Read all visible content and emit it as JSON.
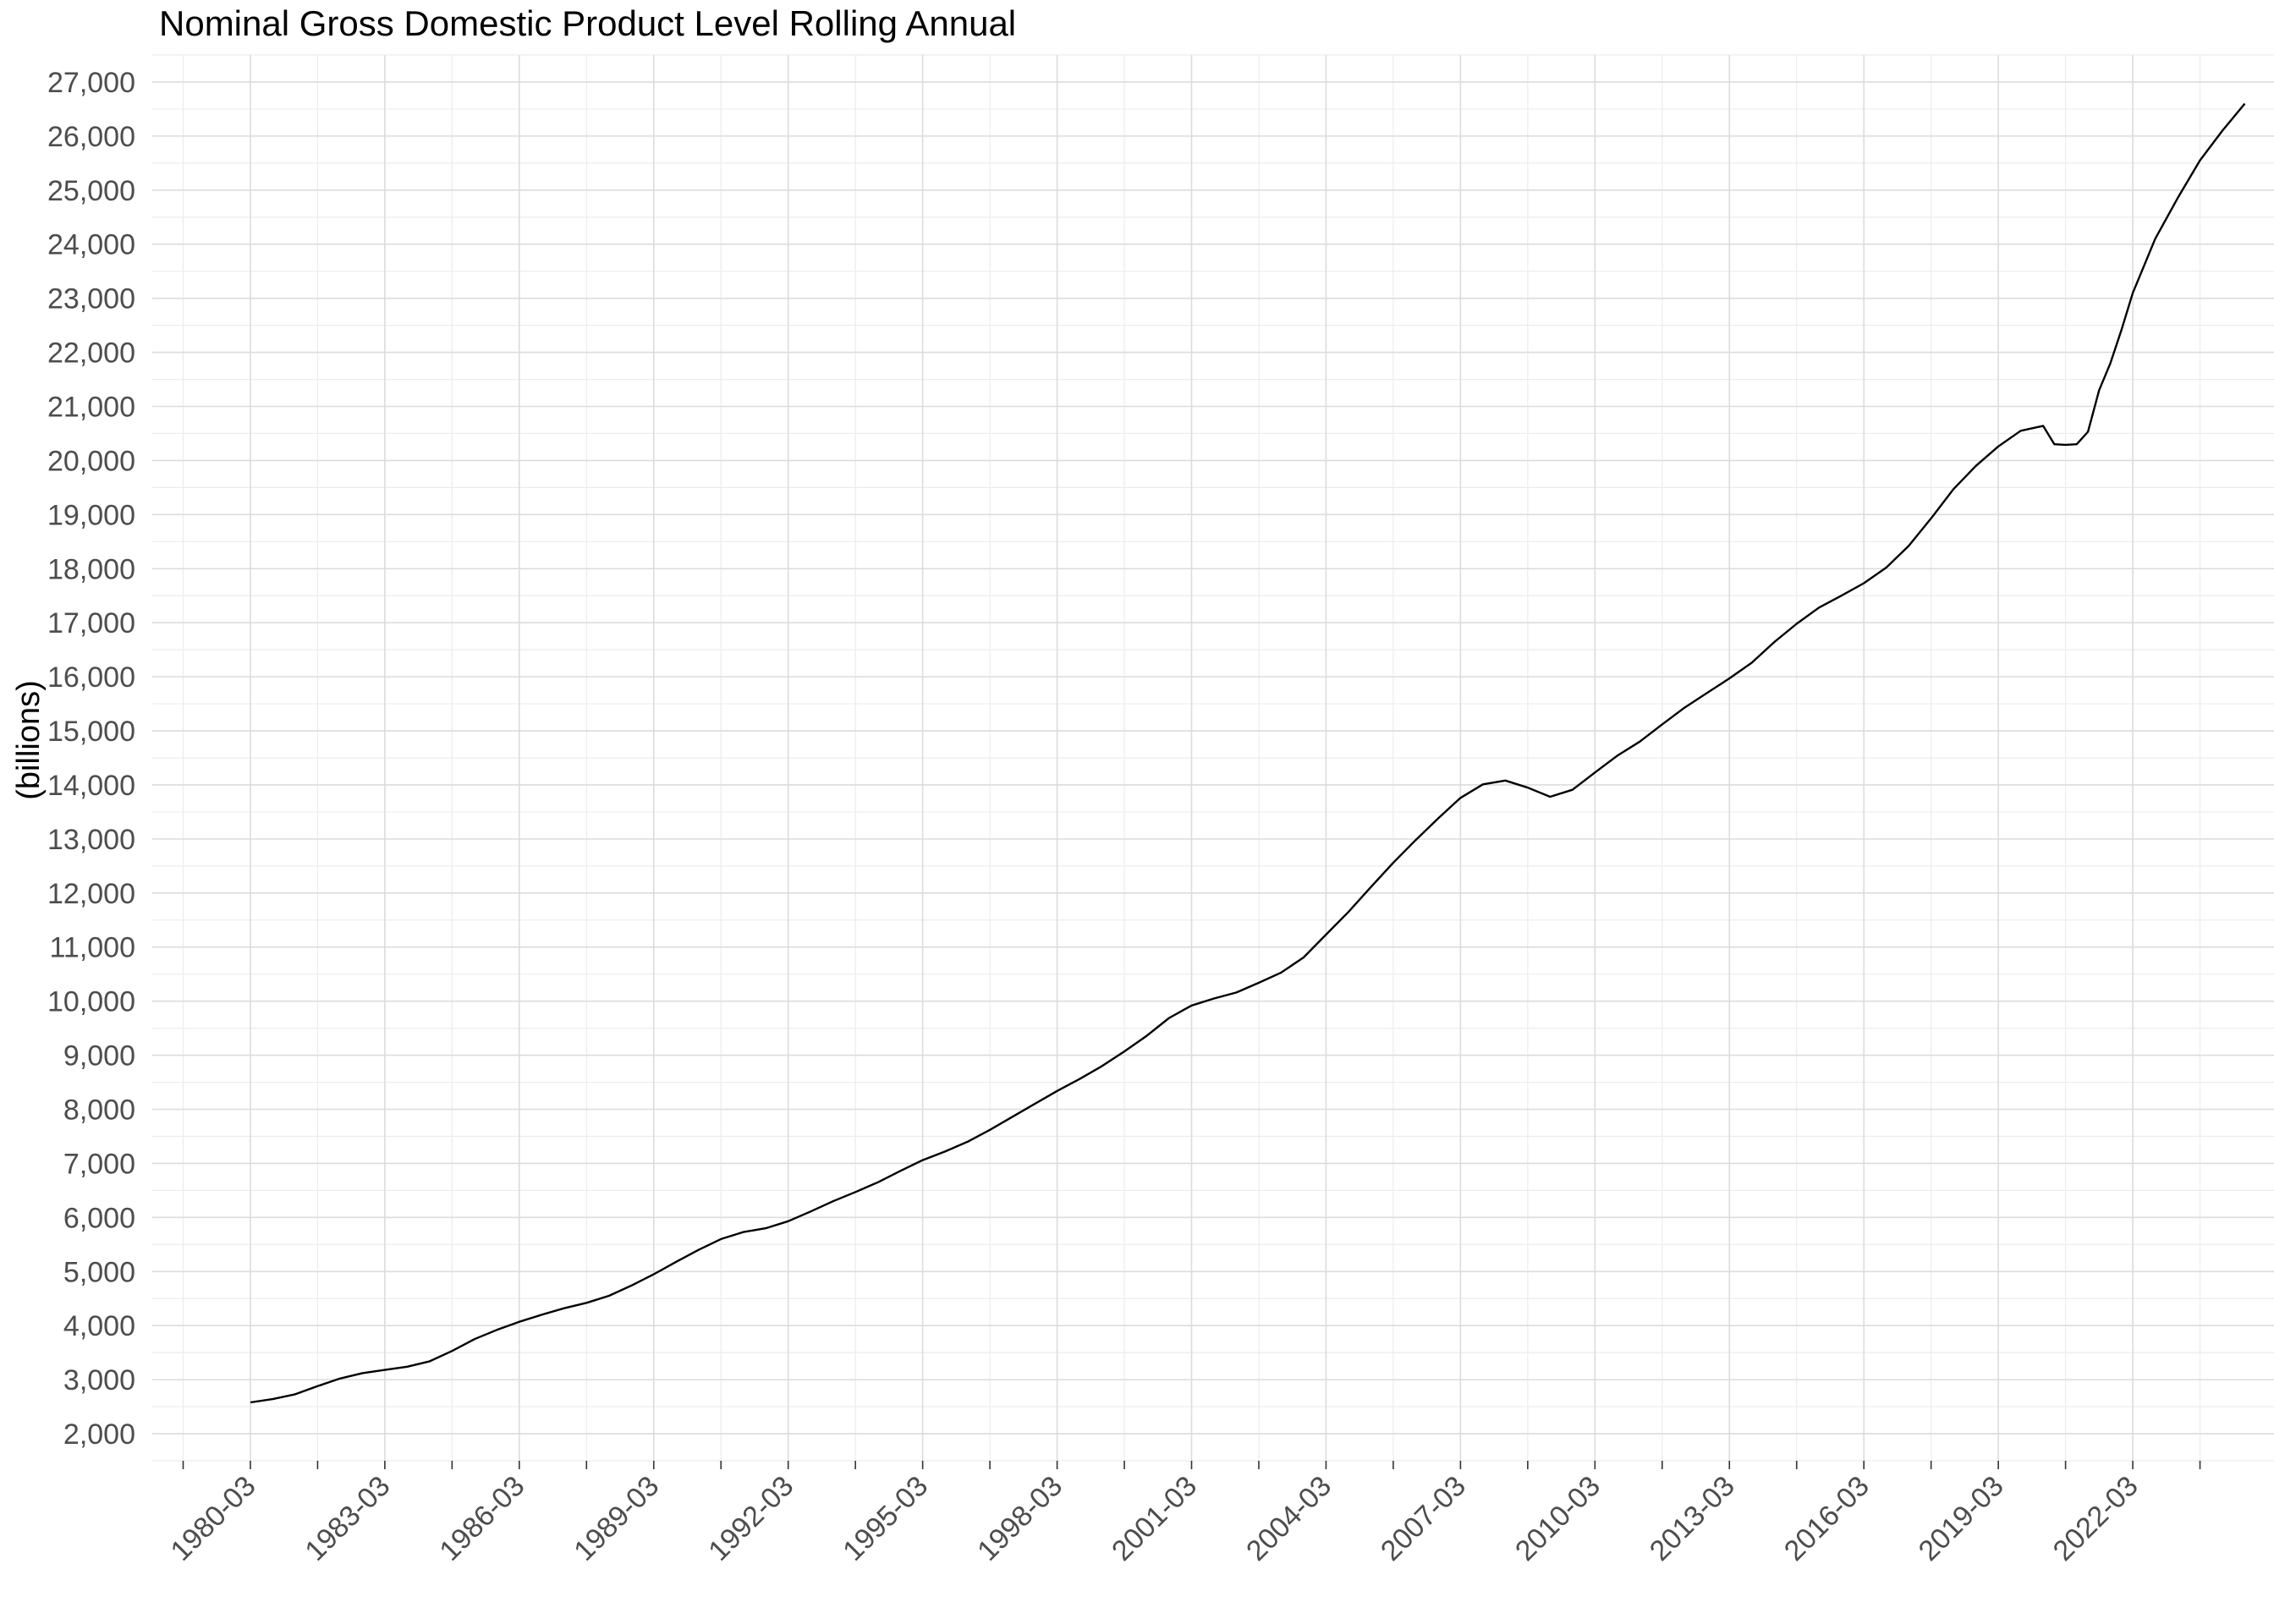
{
  "chart_data": {
    "type": "line",
    "title": "Nominal Gross Domestic Product Level Rolling Annual",
    "xlabel": "",
    "ylabel": "(billions)",
    "x_tick_labels": [
      "1980-03",
      "1983-03",
      "1986-03",
      "1989-03",
      "1992-03",
      "1995-03",
      "1998-03",
      "2001-03",
      "2004-03",
      "2007-03",
      "2010-03",
      "2013-03",
      "2016-03",
      "2019-03",
      "2022-03"
    ],
    "x_range": [
      "1978-03",
      "2025-03"
    ],
    "y_tick_labels": [
      "2,000",
      "3,000",
      "4,000",
      "5,000",
      "6,000",
      "7,000",
      "8,000",
      "9,000",
      "10,000",
      "11,000",
      "12,000",
      "13,000",
      "14,000",
      "15,000",
      "16,000",
      "17,000",
      "18,000",
      "19,000",
      "20,000",
      "21,000",
      "22,000",
      "23,000",
      "24,000",
      "25,000",
      "26,000",
      "27,000"
    ],
    "ylim": [
      1500,
      27500
    ],
    "grid": true,
    "series": [
      {
        "x": [
          "1980-03",
          "1980-09",
          "1981-03",
          "1981-09",
          "1982-03",
          "1982-09",
          "1983-03",
          "1983-09",
          "1984-03",
          "1984-09",
          "1985-03",
          "1985-09",
          "1986-03",
          "1986-09",
          "1987-03",
          "1987-09",
          "1988-03",
          "1988-09",
          "1989-03",
          "1989-09",
          "1990-03",
          "1990-09",
          "1991-03",
          "1991-09",
          "1992-03",
          "1992-09",
          "1993-03",
          "1993-09",
          "1994-03",
          "1994-09",
          "1995-03",
          "1995-09",
          "1996-03",
          "1996-09",
          "1997-03",
          "1997-09",
          "1998-03",
          "1998-09",
          "1999-03",
          "1999-09",
          "2000-03",
          "2000-09",
          "2001-03",
          "2001-09",
          "2002-03",
          "2002-09",
          "2003-03",
          "2003-09",
          "2004-03",
          "2004-09",
          "2005-03",
          "2005-09",
          "2006-03",
          "2006-09",
          "2007-03",
          "2007-09",
          "2008-03",
          "2008-09",
          "2009-03",
          "2009-09",
          "2010-03",
          "2010-09",
          "2011-03",
          "2011-09",
          "2012-03",
          "2012-09",
          "2013-03",
          "2013-09",
          "2014-03",
          "2014-09",
          "2015-03",
          "2015-09",
          "2016-03",
          "2016-09",
          "2017-03",
          "2017-09",
          "2018-03",
          "2018-09",
          "2019-03",
          "2019-09",
          "2020-03",
          "2020-06",
          "2020-09",
          "2020-12",
          "2021-03",
          "2021-06",
          "2021-09",
          "2021-12",
          "2022-03",
          "2022-09",
          "2023-03",
          "2023-09",
          "2024-03",
          "2024-09"
        ],
        "values": [
          2580,
          2640,
          2730,
          2880,
          3020,
          3120,
          3180,
          3240,
          3340,
          3530,
          3750,
          3920,
          4070,
          4200,
          4320,
          4420,
          4550,
          4740,
          4950,
          5180,
          5400,
          5600,
          5730,
          5800,
          5930,
          6110,
          6300,
          6470,
          6650,
          6860,
          7060,
          7220,
          7400,
          7620,
          7860,
          8100,
          8340,
          8560,
          8800,
          9070,
          9360,
          9690,
          9920,
          10050,
          10160,
          10340,
          10530,
          10810,
          11230,
          11650,
          12110,
          12560,
          12980,
          13380,
          13760,
          14010,
          14080,
          13950,
          13780,
          13910,
          14230,
          14540,
          14800,
          15120,
          15430,
          15700,
          15970,
          16260,
          16640,
          16980,
          17280,
          17500,
          17730,
          18020,
          18420,
          18930,
          19470,
          19900,
          20260,
          20550,
          20640,
          20300,
          20290,
          20300,
          20530,
          21300,
          21800,
          22420,
          23100,
          24100,
          24850,
          25550,
          26100,
          26600
        ]
      }
    ]
  }
}
